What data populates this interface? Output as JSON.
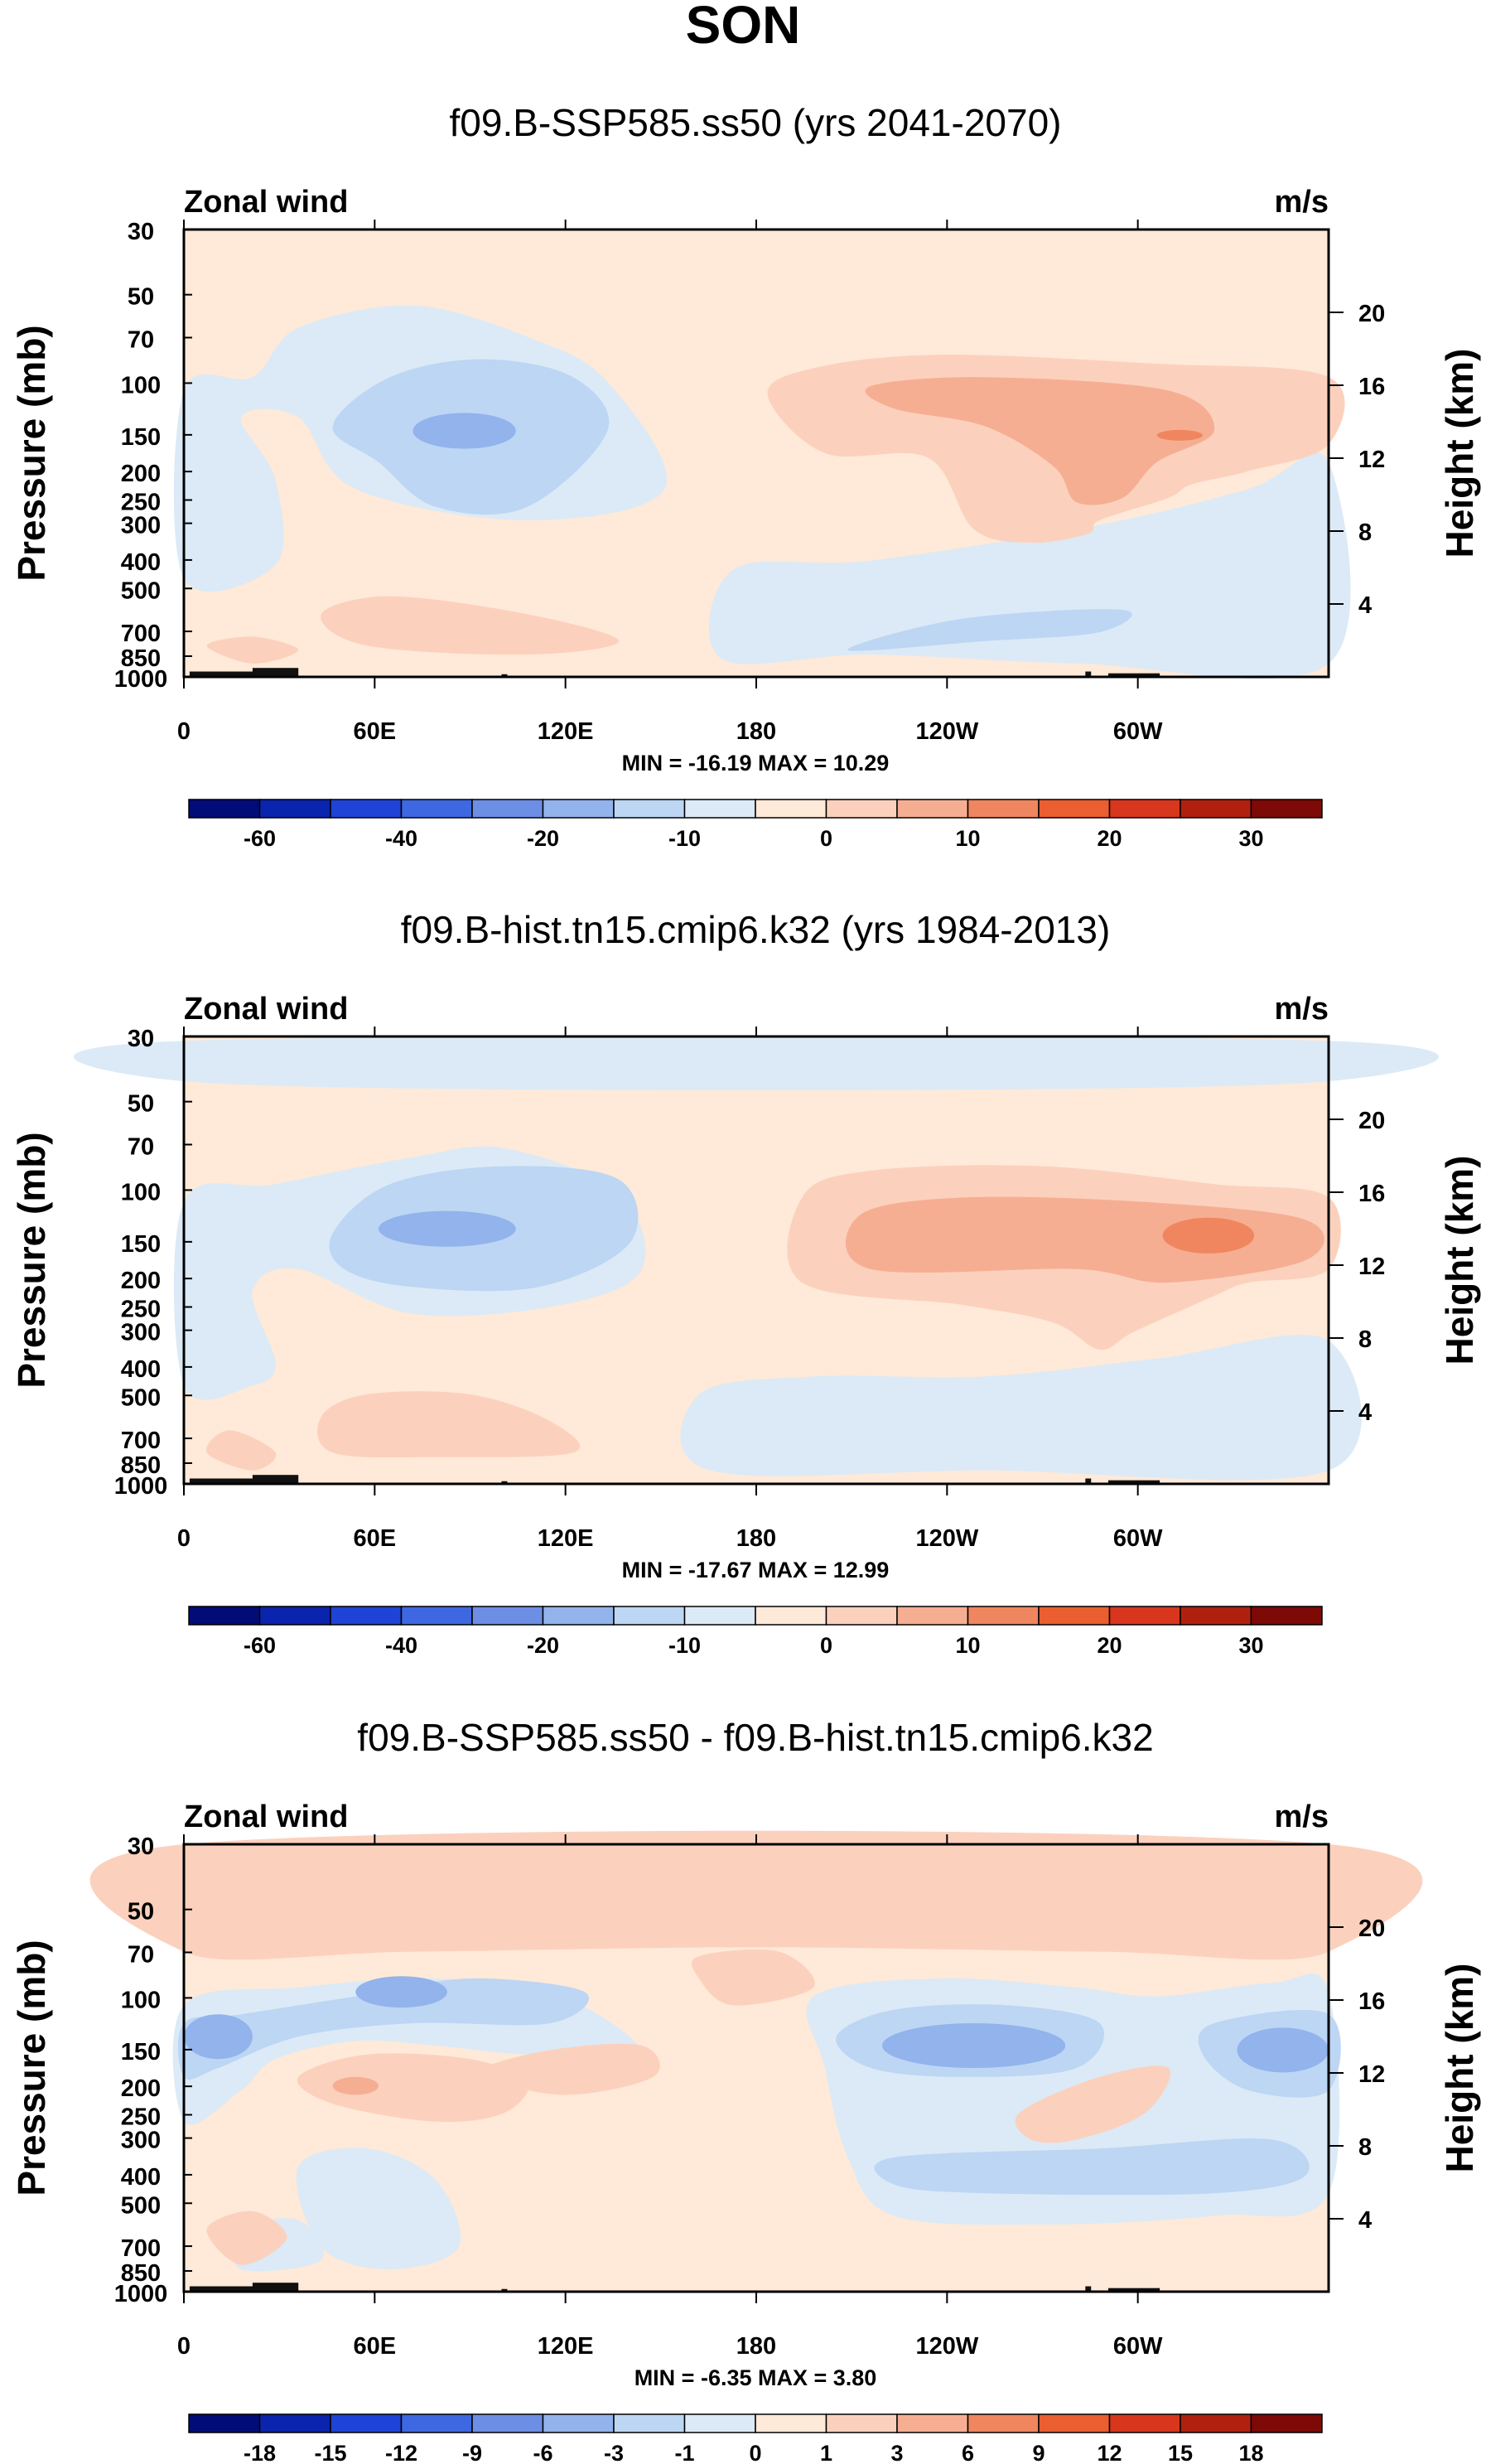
{
  "figure": {
    "title": "SON",
    "field_label": "Zonal wind",
    "units_label": "m/s",
    "left_axis_title": "Pressure (mb)",
    "right_axis_title": "Height (km)",
    "pressure_ticks": [
      "30",
      "50",
      "70",
      "100",
      "150",
      "200",
      "250",
      "300",
      "400",
      "500",
      "700",
      "850",
      "1000"
    ],
    "height_ticks": [
      "20",
      "16",
      "12",
      "8",
      "4"
    ],
    "lon_ticks": [
      "0",
      "60E",
      "120E",
      "180",
      "120W",
      "60W"
    ],
    "colors": {
      "positive": [
        "#ffe9d8",
        "#fbd1bd",
        "#f6ae92",
        "#f0865f",
        "#ea5e30",
        "#d9361e",
        "#b1200f",
        "#7d0a06"
      ],
      "negative": [
        "#dbeaf6",
        "#bcd6f4",
        "#92b3ec",
        "#6c8fe5",
        "#3e67e2",
        "#1e43d6",
        "#0a24ae",
        "#020c78"
      ],
      "orography": "#111111"
    }
  },
  "chart_data": [
    {
      "type": "heatmap",
      "title": "f09.B-SSP585.ss50 (yrs 2041-2070)",
      "min_max_label": "MIN = -16.19  MAX =  10.29",
      "min": -16.19,
      "max": 10.29,
      "colorbar_labels": [
        "-60",
        "-40",
        "-20",
        "-10",
        "0",
        "10",
        "20",
        "30"
      ],
      "contour_levels": [
        -70,
        -60,
        -50,
        -40,
        -30,
        -20,
        -15,
        -10,
        -5,
        0,
        5,
        10,
        15,
        20,
        25,
        30,
        40
      ],
      "xlim_lon": [
        0,
        360
      ],
      "ylim_pressure_mb": [
        1000,
        30
      ]
    },
    {
      "type": "heatmap",
      "title": "f09.B-hist.tn15.cmip6.k32 (yrs 1984-2013)",
      "min_max_label": "MIN = -17.67  MAX =  12.99",
      "min": -17.67,
      "max": 12.99,
      "colorbar_labels": [
        "-60",
        "-40",
        "-20",
        "-10",
        "0",
        "10",
        "20",
        "30"
      ],
      "contour_levels": [
        -70,
        -60,
        -50,
        -40,
        -30,
        -20,
        -15,
        -10,
        -5,
        0,
        5,
        10,
        15,
        20,
        25,
        30,
        40
      ],
      "xlim_lon": [
        0,
        360
      ],
      "ylim_pressure_mb": [
        1000,
        30
      ]
    },
    {
      "type": "heatmap",
      "title": "f09.B-SSP585.ss50 - f09.B-hist.tn15.cmip6.k32",
      "min_max_label": "MIN =  -6.35  MAX =   3.80",
      "min": -6.35,
      "max": 3.8,
      "colorbar_labels": [
        "-18",
        "-15",
        "-12",
        "-9",
        "-6",
        "-3",
        "-1",
        "0",
        "1",
        "3",
        "6",
        "9",
        "12",
        "15",
        "18"
      ],
      "contour_levels": [
        -21,
        -18,
        -15,
        -12,
        -9,
        -6,
        -3,
        -1,
        0,
        1,
        3,
        6,
        9,
        12,
        15,
        18,
        21
      ],
      "xlim_lon": [
        0,
        360
      ],
      "ylim_pressure_mb": [
        1000,
        30
      ]
    }
  ]
}
